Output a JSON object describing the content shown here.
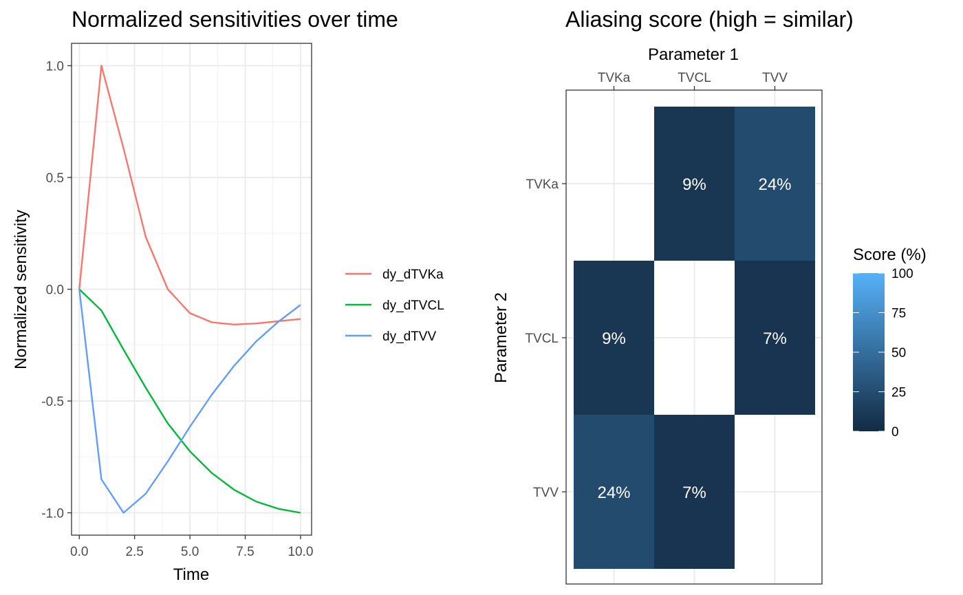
{
  "chart_data": [
    {
      "type": "line",
      "title": "Normalized sensitivities over time",
      "xlabel": "Time",
      "ylabel": "Normalized sensitivity",
      "xlim": [
        -0.35,
        10.5
      ],
      "ylim": [
        -1.1,
        1.1
      ],
      "xticks": [
        "0.0",
        "2.5",
        "5.0",
        "7.5",
        "10.0"
      ],
      "yticks": [
        "-1.0",
        "-0.5",
        "0.0",
        "0.5",
        "1.0"
      ],
      "grid": true,
      "legend": "right",
      "x": [
        0,
        1,
        2,
        3,
        4,
        5,
        6,
        7,
        8,
        9,
        10
      ],
      "series": [
        {
          "name": "dy_dTVKa",
          "color": "#F8766D",
          "values": [
            0.0,
            1.0,
            0.63,
            0.235,
            0.0,
            -0.107,
            -0.148,
            -0.158,
            -0.153,
            -0.143,
            -0.133
          ]
        },
        {
          "name": "dy_dTVCL",
          "color": "#00BA38",
          "values": [
            0.0,
            -0.095,
            -0.27,
            -0.44,
            -0.6,
            -0.725,
            -0.823,
            -0.897,
            -0.95,
            -0.982,
            -1.0
          ]
        },
        {
          "name": "dy_dTVV",
          "color": "#619CFF",
          "values": [
            0.0,
            -0.85,
            -1.0,
            -0.915,
            -0.77,
            -0.615,
            -0.47,
            -0.342,
            -0.233,
            -0.145,
            -0.07
          ]
        }
      ]
    },
    {
      "type": "heatmap",
      "title": "Aliasing score (high = similar)",
      "xlabel": "Parameter 1",
      "ylabel": "Parameter 2",
      "x_categories": [
        "TVKa",
        "TVCL",
        "TVV"
      ],
      "y_categories": [
        "TVKa",
        "TVCL",
        "TVV"
      ],
      "x_axis_position": "top",
      "legend_title": "Score (%)",
      "legend_ticks": [
        "0",
        "25",
        "50",
        "75",
        "100"
      ],
      "legend_range": [
        0,
        100
      ],
      "color_low": "#132B43",
      "color_high": "#56B1F7",
      "cells": [
        {
          "x": "TVCL",
          "y": "TVKa",
          "value": 9,
          "label": "9%"
        },
        {
          "x": "TVV",
          "y": "TVKa",
          "value": 24,
          "label": "24%"
        },
        {
          "x": "TVKa",
          "y": "TVCL",
          "value": 9,
          "label": "9%"
        },
        {
          "x": "TVV",
          "y": "TVCL",
          "value": 7,
          "label": "7%"
        },
        {
          "x": "TVKa",
          "y": "TVV",
          "value": 24,
          "label": "24%"
        },
        {
          "x": "TVCL",
          "y": "TVV",
          "value": 7,
          "label": "7%"
        }
      ]
    }
  ]
}
